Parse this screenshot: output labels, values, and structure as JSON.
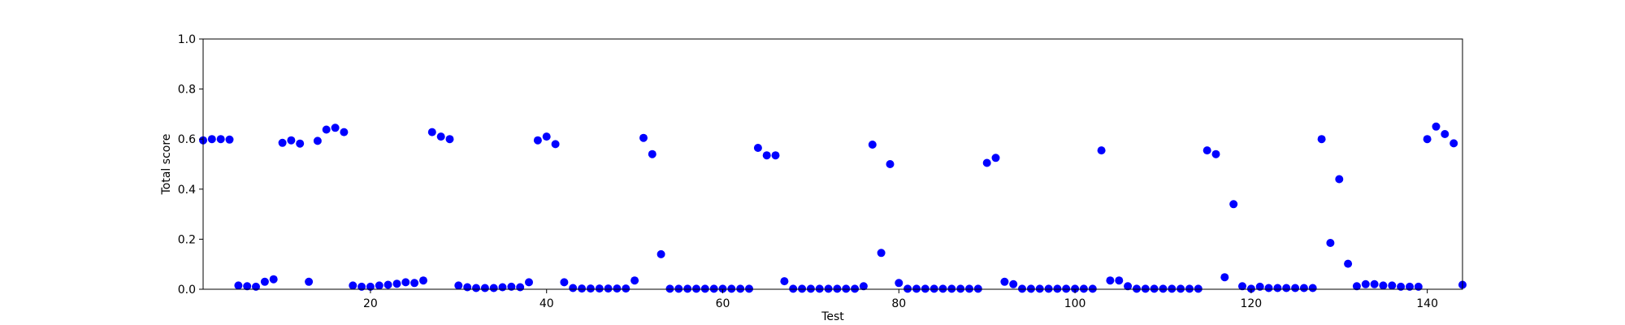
{
  "chart_data": {
    "type": "scatter",
    "title": "",
    "xlabel": "Test",
    "ylabel": "Total score",
    "xlim": [
      1,
      144
    ],
    "ylim": [
      0.0,
      1.0
    ],
    "xticks": [
      20,
      40,
      60,
      80,
      100,
      120,
      140
    ],
    "yticks": [
      0.0,
      0.2,
      0.4,
      0.6,
      0.8,
      1.0
    ],
    "ytick_labels": [
      "0.0",
      "0.2",
      "0.4",
      "0.6",
      "0.8",
      "1.0"
    ],
    "grid": false,
    "marker_color": "#0000ff",
    "x": [
      1,
      2,
      3,
      4,
      5,
      6,
      7,
      8,
      9,
      10,
      11,
      12,
      13,
      14,
      15,
      16,
      17,
      18,
      19,
      20,
      21,
      22,
      23,
      24,
      25,
      26,
      27,
      28,
      29,
      30,
      31,
      32,
      33,
      34,
      35,
      36,
      37,
      38,
      39,
      40,
      41,
      42,
      43,
      44,
      45,
      46,
      47,
      48,
      49,
      50,
      51,
      52,
      53,
      54,
      55,
      56,
      57,
      58,
      59,
      60,
      61,
      62,
      63,
      64,
      65,
      66,
      67,
      68,
      69,
      70,
      71,
      72,
      73,
      74,
      75,
      76,
      77,
      78,
      79,
      80,
      81,
      82,
      83,
      84,
      85,
      86,
      87,
      88,
      89,
      90,
      91,
      92,
      93,
      94,
      95,
      96,
      97,
      98,
      99,
      100,
      101,
      102,
      103,
      104,
      105,
      106,
      107,
      108,
      109,
      110,
      111,
      112,
      113,
      114,
      115,
      116,
      117,
      118,
      119,
      120,
      121,
      122,
      123,
      124,
      125,
      126,
      127,
      128,
      129,
      130,
      131,
      132,
      133,
      134,
      135,
      136,
      137,
      138,
      139,
      140,
      141,
      142,
      143,
      144
    ],
    "y": [
      0.595,
      0.6,
      0.6,
      0.598,
      0.015,
      0.012,
      0.01,
      0.03,
      0.04,
      0.585,
      0.595,
      0.582,
      0.03,
      0.593,
      0.638,
      0.645,
      0.628,
      0.015,
      0.01,
      0.01,
      0.015,
      0.018,
      0.022,
      0.028,
      0.025,
      0.035,
      0.628,
      0.61,
      0.6,
      0.015,
      0.008,
      0.005,
      0.005,
      0.005,
      0.008,
      0.01,
      0.008,
      0.028,
      0.595,
      0.61,
      0.58,
      0.028,
      0.005,
      0.003,
      0.003,
      0.003,
      0.003,
      0.003,
      0.003,
      0.035,
      0.605,
      0.54,
      0.14,
      0.002,
      0.002,
      0.002,
      0.002,
      0.002,
      0.002,
      0.002,
      0.002,
      0.002,
      0.002,
      0.565,
      0.535,
      0.535,
      0.032,
      0.002,
      0.002,
      0.002,
      0.002,
      0.002,
      0.002,
      0.002,
      0.002,
      0.012,
      0.578,
      0.145,
      0.5,
      0.025,
      0.002,
      0.002,
      0.002,
      0.002,
      0.002,
      0.002,
      0.002,
      0.002,
      0.002,
      0.505,
      0.525,
      0.03,
      0.02,
      0.002,
      0.002,
      0.002,
      0.002,
      0.002,
      0.002,
      0.002,
      0.002,
      0.002,
      0.555,
      0.035,
      0.035,
      0.012,
      0.002,
      0.002,
      0.002,
      0.002,
      0.002,
      0.002,
      0.002,
      0.002,
      0.555,
      0.54,
      0.048,
      0.34,
      0.012,
      0.002,
      0.01,
      0.005,
      0.005,
      0.005,
      0.005,
      0.005,
      0.005,
      0.6,
      0.185,
      0.44,
      0.102,
      0.012,
      0.02,
      0.02,
      0.015,
      0.015,
      0.01,
      0.01,
      0.01,
      0.6,
      0.65,
      0.62,
      0.583,
      0.018
    ]
  }
}
